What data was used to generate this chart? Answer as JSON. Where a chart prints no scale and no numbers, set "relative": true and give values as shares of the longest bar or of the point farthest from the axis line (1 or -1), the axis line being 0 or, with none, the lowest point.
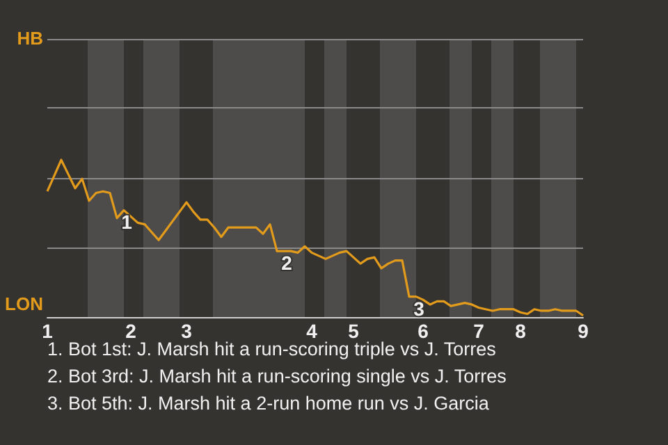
{
  "chart_data": {
    "type": "line",
    "relative": true,
    "categories": [
      "1",
      null,
      null,
      null,
      null,
      null,
      null,
      null,
      null,
      null,
      null,
      null,
      "2",
      null,
      null,
      null,
      null,
      null,
      null,
      null,
      "3",
      null,
      null,
      null,
      null,
      null,
      null,
      null,
      null,
      null,
      null,
      null,
      null,
      null,
      null,
      null,
      null,
      null,
      "4",
      null,
      null,
      null,
      null,
      null,
      "5",
      null,
      null,
      null,
      null,
      null,
      null,
      null,
      null,
      null,
      "6",
      null,
      null,
      null,
      null,
      null,
      null,
      null,
      "7",
      null,
      null,
      null,
      null,
      null,
      "8",
      null,
      null,
      null,
      null,
      null,
      null,
      null,
      null,
      "9"
    ],
    "series": [
      {
        "color": "#e39b1c",
        "values": [
          0.8,
          0.9,
          1,
          0.91,
          0.82,
          0.88,
          0.74,
          0.79,
          0.8,
          0.79,
          0.63,
          0.68,
          0.64,
          0.6,
          0.59,
          0.54,
          0.49,
          0.55,
          0.61,
          0.67,
          0.73,
          0.67,
          0.62,
          0.62,
          0.57,
          0.51,
          0.57,
          0.57,
          0.57,
          0.57,
          0.57,
          0.53,
          0.59,
          0.42,
          0.42,
          0.42,
          0.41,
          0.45,
          0.41,
          0.39,
          0.37,
          0.39,
          0.41,
          0.42,
          0.38,
          0.34,
          0.37,
          0.38,
          0.31,
          0.34,
          0.36,
          0.36,
          0.13,
          0.13,
          0.11,
          0.08,
          0.1,
          0.1,
          0.07,
          0.08,
          0.09,
          0.08,
          0.06,
          0.05,
          0.04,
          0.05,
          0.05,
          0.05,
          0.03,
          0.02,
          0.05,
          0.04,
          0.04,
          0.05,
          0.04,
          0.04,
          0.04,
          0.01
        ]
      }
    ],
    "marker": "none",
    "ref_lines": [
      {
        "axis": "y",
        "value": 0.44,
        "color": "#8a8a8a"
      },
      {
        "axis": "y",
        "value": 0.88,
        "color": "#8a8a8a"
      },
      {
        "axis": "y",
        "value": 1.33,
        "color": "#8a8a8a"
      },
      {
        "axis": "y",
        "value": 1.77,
        "color": "#8a8a8a"
      }
    ],
    "annotations": [
      "HB",
      "LON",
      "1",
      "2",
      "3",
      "1. Bot 1st: J. Marsh hit a run-scoring triple vs J. Torres",
      "2. Bot 3rd: J. Marsh hit a run-scoring single vs J. Torres",
      "3. Bot 5th: J. Marsh hit a 2-run home run vs J. Garcia"
    ]
  }
}
